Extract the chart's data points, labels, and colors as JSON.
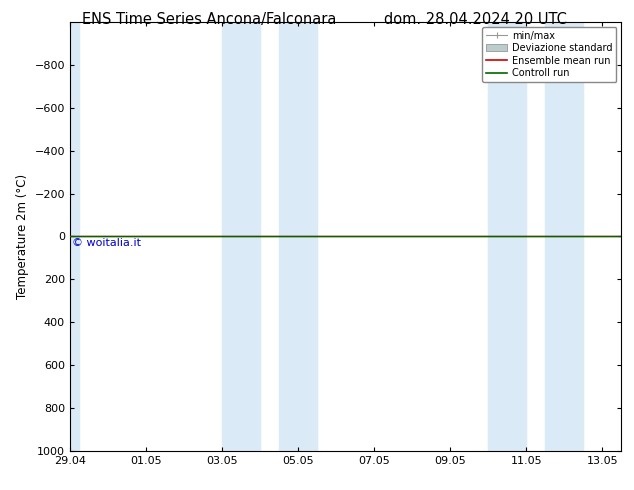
{
  "title_left": "ENS Time Series Ancona/Falconara",
  "title_right": "dom. 28.04.2024 20 UTC",
  "ylabel": "Temperature 2m (°C)",
  "xlabel_ticks": [
    "29.04",
    "01.05",
    "03.05",
    "05.05",
    "07.05",
    "09.05",
    "11.05",
    "13.05"
  ],
  "xlim": [
    0,
    14.5
  ],
  "ylim": [
    1000,
    -1000
  ],
  "yticks": [
    -800,
    -600,
    -400,
    -200,
    0,
    200,
    400,
    600,
    800,
    1000
  ],
  "xtick_positions": [
    0,
    2,
    4,
    6,
    8,
    10,
    12,
    14
  ],
  "shaded_bands": [
    [
      0,
      0.25
    ],
    [
      4.0,
      5.0
    ],
    [
      5.5,
      6.5
    ],
    [
      11.0,
      12.0
    ],
    [
      12.5,
      13.5
    ]
  ],
  "shaded_color": "#daeaf6",
  "flat_line_y": 0,
  "flat_line_color_ensemble": "#cc0000",
  "flat_line_color_control": "#006600",
  "watermark": "© woitalia.it",
  "watermark_color": "#0000cc",
  "legend_labels": [
    "min/max",
    "Deviazione standard",
    "Ensemble mean run",
    "Controll run"
  ],
  "legend_colors": [
    "#999999",
    "#bbcccc",
    "#cc0000",
    "#006600"
  ],
  "background_color": "#ffffff",
  "axes_bg_color": "#ffffff",
  "border_color": "#000000",
  "title_fontsize": 10.5,
  "tick_fontsize": 8,
  "ylabel_fontsize": 8.5
}
